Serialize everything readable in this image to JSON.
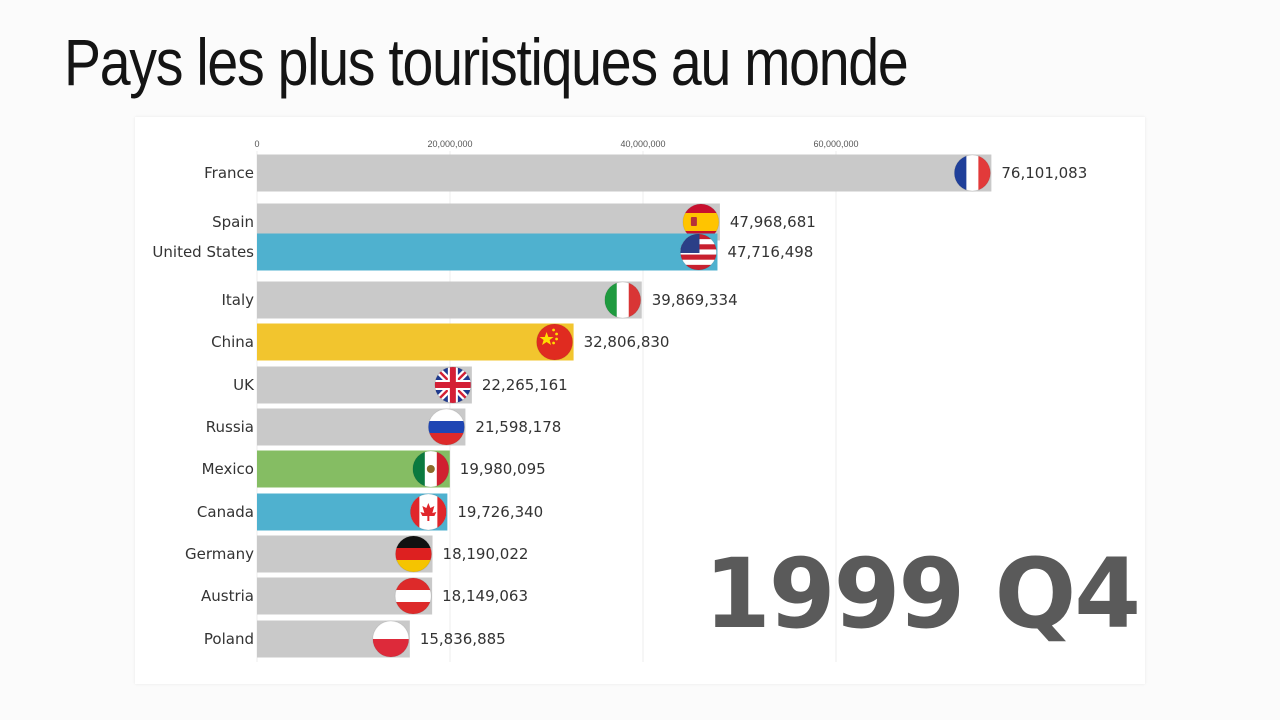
{
  "title": "Pays les plus touristiques au monde",
  "period": "1999 Q4",
  "chart_data": {
    "type": "bar",
    "orientation": "horizontal",
    "title": "Pays les plus touristiques au monde",
    "xlim": [
      0,
      80000000
    ],
    "xticks": [
      0,
      20000000,
      40000000,
      60000000
    ],
    "xtick_labels": [
      "0",
      "20,000,000",
      "40,000,000",
      "60,000,000"
    ],
    "grid": true,
    "categories": [
      "France",
      "Spain",
      "United States",
      "Italy",
      "China",
      "UK",
      "Russia",
      "Mexico",
      "Canada",
      "Germany",
      "Austria",
      "Poland"
    ],
    "values": [
      76101083,
      47968681,
      47716498,
      39869334,
      32806830,
      22265161,
      21598178,
      19980095,
      19726340,
      18190022,
      18149063,
      15836885
    ],
    "value_labels": [
      "76,101,083",
      "47,968,681",
      "47,716,498",
      "39,869,334",
      "32,806,830",
      "22,265,161",
      "21,598,178",
      "19,980,095",
      "19,726,340",
      "18,190,022",
      "18,149,063",
      "15,836,885"
    ],
    "bar_colors": [
      "#c9c9c9",
      "#c9c9c9",
      "#4fb1cf",
      "#c9c9c9",
      "#f2c52e",
      "#c9c9c9",
      "#c9c9c9",
      "#85bd63",
      "#4fb1cf",
      "#c9c9c9",
      "#c9c9c9",
      "#c9c9c9"
    ],
    "flag_icons": [
      "france-flag-icon",
      "spain-flag-icon",
      "united-states-flag-icon",
      "italy-flag-icon",
      "china-flag-icon",
      "uk-flag-icon",
      "russia-flag-icon",
      "mexico-flag-icon",
      "canada-flag-icon",
      "germany-flag-icon",
      "austria-flag-icon",
      "poland-flag-icon"
    ]
  }
}
